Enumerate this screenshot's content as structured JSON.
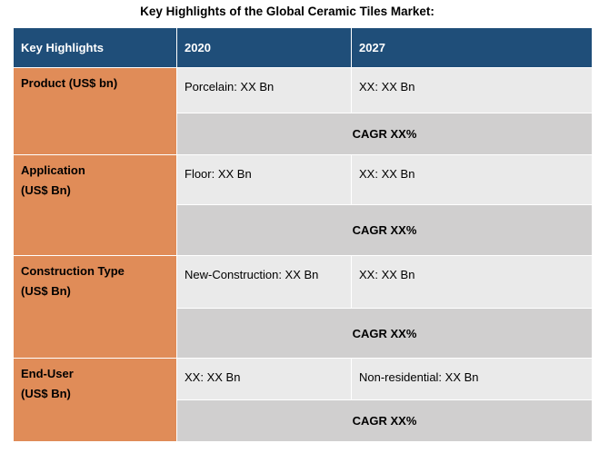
{
  "title": "Key Highlights of the Global Ceramic Tiles Market:",
  "headers": [
    "Key Highlights",
    "2020",
    "2027"
  ],
  "rows": [
    {
      "label": [
        "Product (US$ bn)"
      ],
      "v2020": "Porcelain: XX Bn",
      "v2027": "XX: XX Bn",
      "cagr": "CAGR XX%"
    },
    {
      "label": [
        "Application",
        "(US$ Bn)"
      ],
      "v2020": "Floor: XX Bn",
      "v2027": "XX: XX Bn",
      "cagr": "CAGR XX%"
    },
    {
      "label": [
        "Construction Type",
        "(US$ Bn)"
      ],
      "v2020": "New-Construction: XX Bn",
      "v2027": "XX: XX Bn",
      "cagr": "CAGR XX%"
    },
    {
      "label": [
        "End-User",
        "(US$ Bn)"
      ],
      "v2020": "XX: XX Bn",
      "v2027": "Non-residential: XX Bn",
      "cagr": "CAGR XX%"
    }
  ]
}
